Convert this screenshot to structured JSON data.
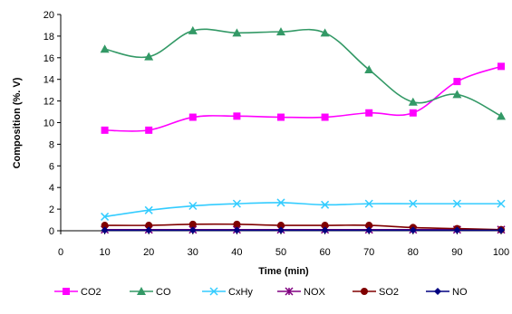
{
  "chart_data": {
    "type": "line",
    "xlabel": "Time (min)",
    "ylabel": "Composition (%. V)",
    "xlim": [
      0,
      100
    ],
    "ylim": [
      0,
      20
    ],
    "x_ticks": [
      "0",
      "10",
      "20",
      "30",
      "40",
      "50",
      "60",
      "70",
      "80",
      "90",
      "100"
    ],
    "y_ticks": [
      "0",
      "2",
      "4",
      "6",
      "8",
      "10",
      "12",
      "14",
      "16",
      "18",
      "20"
    ],
    "grid": false,
    "legend_position": "bottom",
    "x": [
      10,
      20,
      30,
      40,
      50,
      60,
      70,
      80,
      90,
      100
    ],
    "series": [
      {
        "name": "CO2",
        "color": "#ff00ff",
        "marker": "square",
        "smooth": true,
        "values": [
          9.3,
          9.3,
          10.5,
          10.6,
          10.5,
          10.5,
          10.9,
          10.9,
          13.8,
          15.2
        ]
      },
      {
        "name": "CO",
        "color": "#339966",
        "marker": "triangle",
        "smooth": true,
        "values": [
          16.8,
          16.1,
          18.5,
          18.3,
          18.4,
          18.3,
          14.9,
          11.9,
          12.6,
          10.6
        ]
      },
      {
        "name": "CxHy",
        "color": "#33ccff",
        "marker": "x",
        "smooth": true,
        "values": [
          1.3,
          1.9,
          2.3,
          2.5,
          2.6,
          2.4,
          2.5,
          2.5,
          2.5,
          2.5
        ]
      },
      {
        "name": "NOX",
        "color": "#800080",
        "marker": "star",
        "smooth": false,
        "values": [
          0.1,
          0.1,
          0.1,
          0.1,
          0.1,
          0.1,
          0.1,
          0.1,
          0.1,
          0.1
        ]
      },
      {
        "name": "SO2",
        "color": "#800000",
        "marker": "circle",
        "smooth": true,
        "values": [
          0.5,
          0.5,
          0.6,
          0.6,
          0.5,
          0.5,
          0.5,
          0.3,
          0.2,
          0.1
        ]
      },
      {
        "name": "NO",
        "color": "#000080",
        "marker": "diamond",
        "smooth": false,
        "values": [
          0.05,
          0.05,
          0.05,
          0.05,
          0.05,
          0.05,
          0.05,
          0.05,
          0.05,
          0.05
        ]
      }
    ]
  }
}
